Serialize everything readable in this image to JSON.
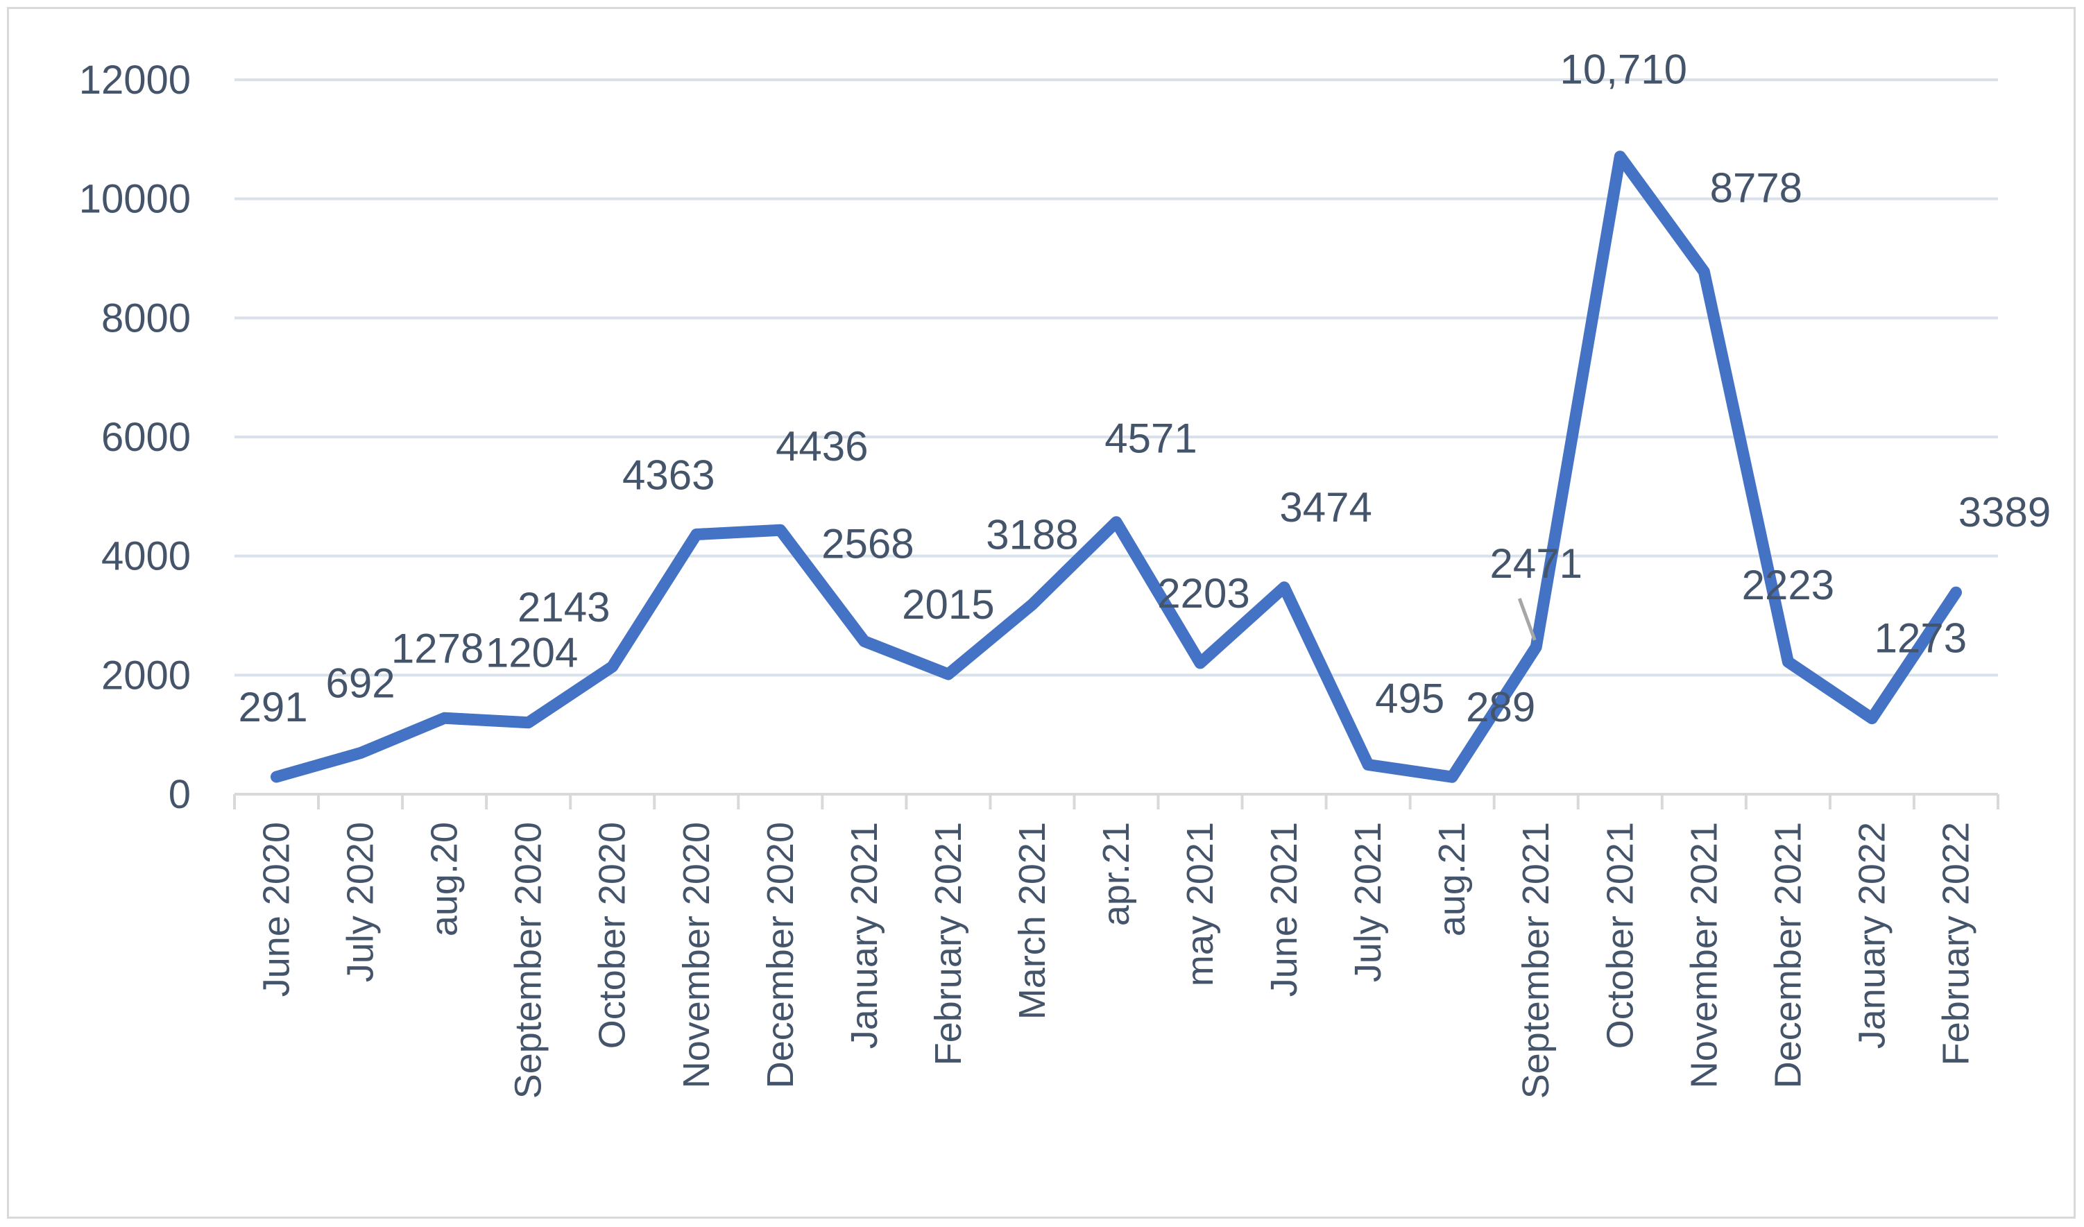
{
  "chart_data": {
    "type": "line",
    "title": "",
    "xlabel": "",
    "ylabel": "",
    "ylim": [
      0,
      12000
    ],
    "yticks": [
      0,
      2000,
      4000,
      6000,
      8000,
      10000,
      12000
    ],
    "grid": true,
    "legend": "none",
    "categories": [
      "June 2020",
      "July 2020",
      "aug.20",
      "September 2020",
      "October 2020",
      "November 2020",
      "December 2020",
      "January 2021",
      "February 2021",
      "March 2021",
      "apr.21",
      "may 2021",
      "June 2021",
      "July 2021",
      "aug.21",
      "September 2021",
      "October 2021",
      "November 2021",
      "December 2021",
      "January 2022",
      "February 2022"
    ],
    "series": [
      {
        "values": [
          291,
          692,
          1278,
          1204,
          2143,
          4363,
          4436,
          2568,
          2015,
          3188,
          4571,
          2203,
          3474,
          495,
          289,
          2471,
          10710,
          8778,
          2223,
          1273,
          3389
        ],
        "data_labels": [
          "291",
          "692",
          "1278",
          "1204",
          "2143",
          "4363",
          "4436",
          "2568",
          "2015",
          "3188",
          "4571",
          "2203",
          "3474",
          "495",
          "289",
          "2471",
          "10,710",
          "8778",
          "2223",
          "1273",
          "3389"
        ]
      }
    ],
    "colors": {
      "line": "#4472c4",
      "gridline": "#d9e1ea",
      "axis": "#d9d9d9",
      "text": "#44546a",
      "leader": "#a6a6a6"
    }
  }
}
